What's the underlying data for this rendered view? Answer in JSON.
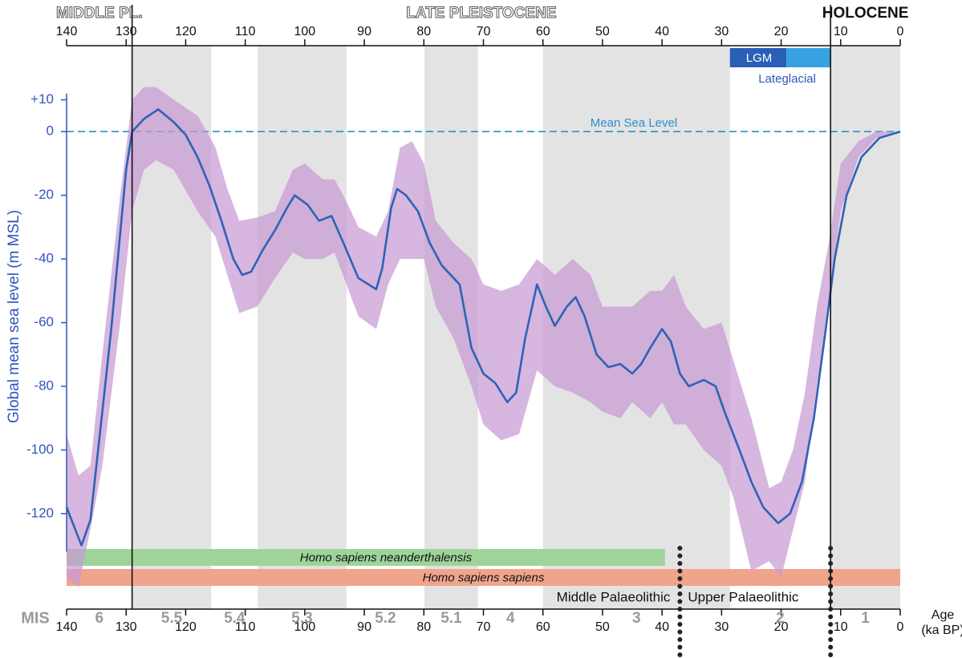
{
  "chart_data": {
    "type": "line",
    "y_label": "Global mean sea level (m MSL)",
    "x_label_lines": [
      "Age",
      "(ka BP)"
    ],
    "xlim": [
      140,
      0
    ],
    "ylim": [
      -150,
      27
    ],
    "xticks": [
      140,
      130,
      120,
      110,
      100,
      90,
      80,
      70,
      60,
      50,
      40,
      30,
      20,
      10,
      0
    ],
    "yticks": [
      {
        "value": 10,
        "label": "+10"
      },
      0,
      -20,
      -40,
      -60,
      -80,
      -100,
      -120
    ],
    "epochs": [
      {
        "label": "MIDDLE PL.",
        "start": 140,
        "end": 129,
        "outlined": true
      },
      {
        "label": "LATE PLEISTOCENE",
        "start": 129,
        "end": 11.7,
        "outlined": true
      },
      {
        "label": "HOLOCENE",
        "start": 11.7,
        "end": 0,
        "outlined": false
      }
    ],
    "stage_title": "MIS",
    "stages": [
      {
        "label": "6",
        "start": 140,
        "end": 129,
        "shaded": false
      },
      {
        "label": "5.5",
        "start": 129,
        "end": 115.7,
        "shaded": true
      },
      {
        "label": "5.4",
        "start": 115.7,
        "end": 107.9,
        "shaded": false
      },
      {
        "label": "5.3",
        "start": 107.9,
        "end": 93,
        "shaded": true
      },
      {
        "label": "5.2",
        "start": 93,
        "end": 79.9,
        "shaded": false
      },
      {
        "label": "5.1",
        "start": 79.9,
        "end": 70.9,
        "shaded": true
      },
      {
        "label": "4",
        "start": 70.9,
        "end": 60,
        "shaded": false
      },
      {
        "label": "3",
        "start": 60,
        "end": 28.6,
        "shaded": true
      },
      {
        "label": "2",
        "start": 28.6,
        "end": 11.7,
        "shaded": false
      },
      {
        "label": "1",
        "start": 11.7,
        "end": 0,
        "shaded": true
      }
    ],
    "glacial": [
      {
        "label": "LGM",
        "start": 28.6,
        "end": 19.1,
        "color": "#2a5fb8"
      },
      {
        "label": "Lateglacial",
        "start": 19.1,
        "end": 11.7,
        "color": "#36a2e0"
      }
    ],
    "msl_label": "Mean Sea Level",
    "band": {
      "color": "#c79ad3",
      "x": [
        140,
        138,
        136,
        134,
        131,
        129,
        127,
        125,
        122,
        118,
        115,
        113,
        111,
        108,
        105,
        102,
        100,
        97,
        95,
        93,
        91,
        88,
        86,
        84,
        82,
        80,
        78,
        75,
        72,
        70,
        67,
        64,
        61,
        58,
        55,
        52,
        50,
        47,
        45,
        42,
        40,
        38,
        36,
        33,
        30,
        28,
        25,
        22,
        20,
        18,
        16,
        14,
        12,
        10,
        7,
        4,
        0
      ],
      "upper": [
        -95,
        -108,
        -105,
        -70,
        -20,
        10,
        14,
        14,
        10,
        5,
        -5,
        -18,
        -28,
        -27,
        -25,
        -12,
        -10,
        -15,
        -15,
        -22,
        -30,
        -33,
        -25,
        -5,
        -3,
        -10,
        -28,
        -35,
        -40,
        -48,
        -50,
        -48,
        -40,
        -45,
        -40,
        -45,
        -55,
        -55,
        -55,
        -50,
        -50,
        -45,
        -55,
        -62,
        -60,
        -72,
        -90,
        -112,
        -110,
        -100,
        -82,
        -55,
        -35,
        -10,
        -3,
        0,
        0
      ],
      "lower": [
        -140,
        -143,
        -125,
        -105,
        -60,
        -25,
        -12,
        -9,
        -12,
        -25,
        -33,
        -45,
        -57,
        -55,
        -46,
        -38,
        -40,
        -40,
        -38,
        -48,
        -58,
        -62,
        -48,
        -40,
        -40,
        -40,
        -55,
        -65,
        -80,
        -92,
        -97,
        -95,
        -75,
        -80,
        -82,
        -85,
        -88,
        -90,
        -85,
        -90,
        -85,
        -92,
        -92,
        -100,
        -105,
        -115,
        -138,
        -135,
        -140,
        -125,
        -110,
        -80,
        -55,
        -25,
        -8,
        -2,
        0
      ]
    },
    "sea_level": {
      "color": "#2d63b5",
      "x": [
        140,
        137.5,
        136,
        134,
        132.5,
        131,
        130,
        129,
        127,
        124.6,
        122,
        120,
        118,
        116,
        114,
        112,
        110.5,
        109,
        107,
        105,
        103,
        101.7,
        99.5,
        97.6,
        95.5,
        93.5,
        91,
        88,
        87,
        85.5,
        84.5,
        83,
        81,
        79,
        77,
        74,
        72,
        70,
        68,
        66,
        64.5,
        63,
        61,
        59.5,
        58,
        56,
        54.5,
        53,
        51,
        49,
        47,
        45,
        43.5,
        42,
        40,
        38.5,
        37,
        35.5,
        33,
        31,
        29.5,
        27,
        25,
        23,
        20.5,
        18.5,
        16.5,
        14.5,
        12.5,
        11,
        9,
        6.5,
        3.5,
        0
      ],
      "values": [
        -118,
        -130,
        -122,
        -88,
        -62,
        -32,
        -12,
        0,
        4,
        7,
        3,
        -1,
        -8,
        -17,
        -28,
        -40,
        -45,
        -44,
        -37,
        -31,
        -24,
        -20,
        -23,
        -28,
        -26.5,
        -35,
        -46,
        -49.5,
        -43,
        -24,
        -18,
        -20,
        -25,
        -35,
        -42,
        -48,
        -68,
        -76,
        -79,
        -85,
        -82,
        -65,
        -48,
        -55,
        -61,
        -55,
        -52,
        -58,
        -70,
        -74,
        -73,
        -76,
        -73,
        -68,
        -62,
        -66,
        -76,
        -80,
        -78,
        -80,
        -88,
        -100,
        -110,
        -118,
        -123,
        -120,
        -110,
        -90,
        -62,
        -40,
        -20,
        -8,
        -2,
        0
      ]
    },
    "hominins": [
      {
        "label": "Homo sapiens neanderthalensis",
        "start": 140,
        "end": 39.5,
        "color": "#9ed49a"
      },
      {
        "label": "Homo sapiens sapiens",
        "start": 140,
        "end": 0,
        "color": "#f0a48c"
      }
    ],
    "boundaries": [
      37,
      11.7
    ],
    "cultures": [
      "Middle Palaeolithic",
      "Upper Palaeolithic"
    ]
  }
}
